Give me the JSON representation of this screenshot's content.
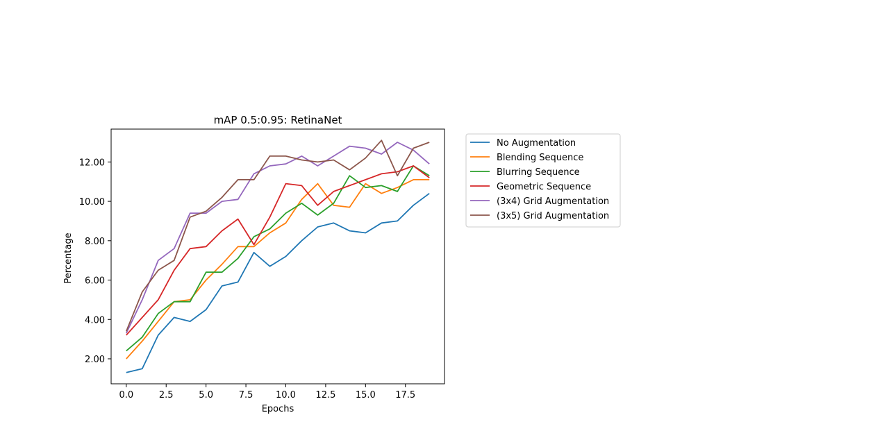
{
  "chart_data": {
    "type": "line",
    "title": "mAP 0.5:0.95: RetinaNet",
    "xlabel": "Epochs",
    "ylabel": "Percentage",
    "xlim": [
      -0.95,
      19.95
    ],
    "ylim": [
      0.73,
      13.67
    ],
    "xticks": [
      0,
      2.5,
      5,
      7.5,
      10,
      12.5,
      15,
      17.5
    ],
    "xtick_labels": [
      "0.0",
      "2.5",
      "5.0",
      "7.5",
      "10.0",
      "12.5",
      "15.0",
      "17.5"
    ],
    "yticks": [
      2,
      4,
      6,
      8,
      10,
      12
    ],
    "ytick_labels": [
      "2.00",
      "4.00",
      "6.00",
      "8.00",
      "10.00",
      "12.00"
    ],
    "grid": false,
    "legend_position": "outside-right-top",
    "x": [
      0,
      1,
      2,
      3,
      4,
      5,
      6,
      7,
      8,
      9,
      10,
      11,
      12,
      13,
      14,
      15,
      16,
      17,
      18,
      19
    ],
    "series": [
      {
        "name": "No Augmentation",
        "color": "#1f77b4",
        "values": [
          1.3,
          1.5,
          3.2,
          4.1,
          3.9,
          4.5,
          5.7,
          5.9,
          7.4,
          6.7,
          7.2,
          8.0,
          8.7,
          8.9,
          8.5,
          8.4,
          8.9,
          9.0,
          9.8,
          10.4
        ]
      },
      {
        "name": "Blending Sequence",
        "color": "#ff7f0e",
        "values": [
          2.0,
          2.9,
          3.9,
          4.9,
          5.0,
          6.0,
          6.8,
          7.7,
          7.7,
          8.4,
          8.9,
          10.1,
          10.9,
          9.8,
          9.7,
          10.9,
          10.4,
          10.7,
          11.1,
          11.1
        ]
      },
      {
        "name": "Blurring Sequence",
        "color": "#2ca02c",
        "values": [
          2.4,
          3.1,
          4.3,
          4.9,
          4.9,
          6.4,
          6.4,
          7.1,
          8.2,
          8.6,
          9.4,
          9.9,
          9.3,
          9.9,
          11.3,
          10.7,
          10.8,
          10.5,
          11.8,
          11.3
        ]
      },
      {
        "name": "Geometric Sequence",
        "color": "#d62728",
        "values": [
          3.2,
          4.1,
          5.0,
          6.5,
          7.6,
          7.7,
          8.5,
          9.1,
          7.8,
          9.2,
          10.9,
          10.8,
          9.8,
          10.5,
          10.8,
          11.1,
          11.4,
          11.5,
          11.8,
          11.2
        ]
      },
      {
        "name": "(3x4) Grid Augmentation",
        "color": "#9467bd",
        "values": [
          3.3,
          5.0,
          7.0,
          7.6,
          9.4,
          9.4,
          10.0,
          10.1,
          11.4,
          11.8,
          11.9,
          12.3,
          11.8,
          12.3,
          12.8,
          12.7,
          12.4,
          13.0,
          12.6,
          11.9
        ]
      },
      {
        "name": "(3x5) Grid Augmentation",
        "color": "#8c564b",
        "values": [
          3.4,
          5.4,
          6.5,
          7.0,
          9.2,
          9.5,
          10.2,
          11.1,
          11.1,
          12.3,
          12.3,
          12.1,
          12.0,
          12.1,
          11.6,
          12.2,
          13.1,
          11.3,
          12.7,
          13.0
        ]
      }
    ]
  }
}
